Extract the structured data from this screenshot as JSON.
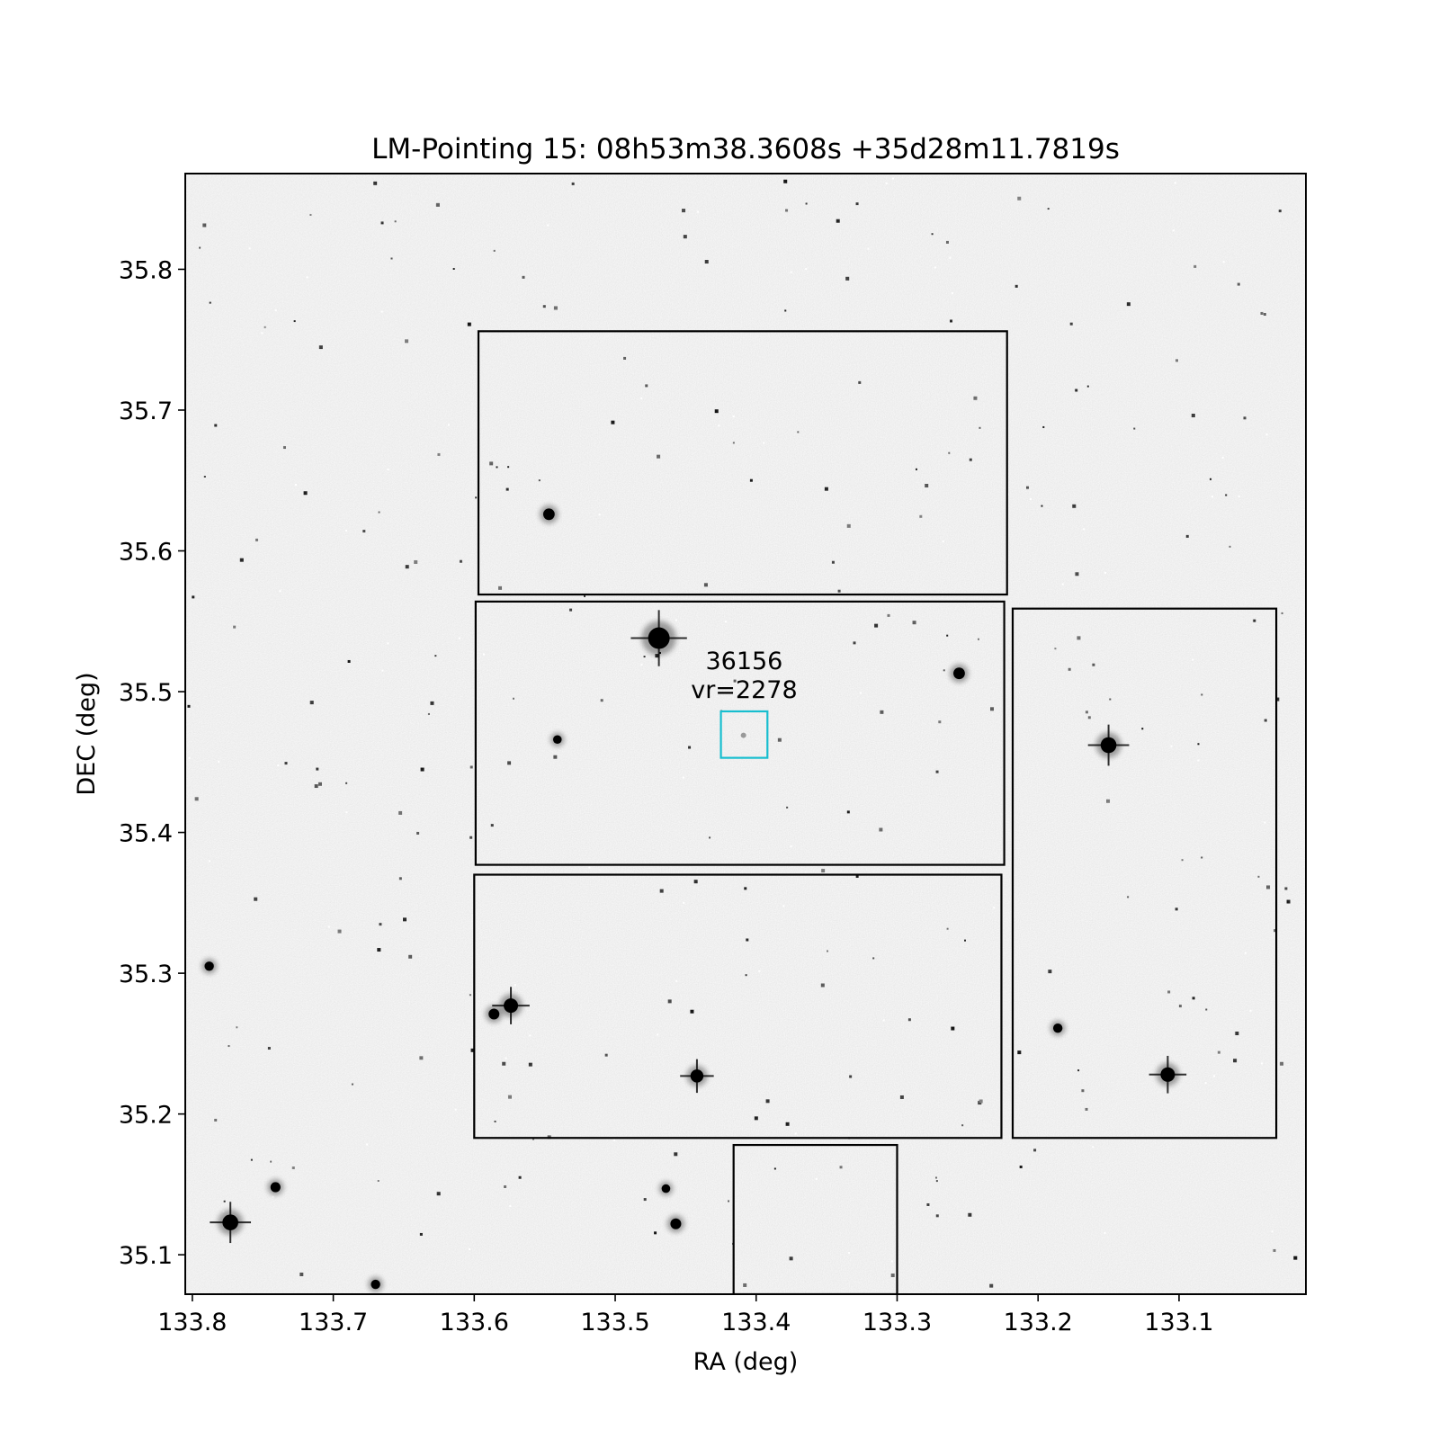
{
  "chart_data": {
    "type": "scatter",
    "title": "LM-Pointing 15: 08h53m38.3608s +35d28m11.7819s",
    "xlabel": "RA (deg)",
    "ylabel": "DEC (deg)",
    "xlim": [
      133.805,
      133.01
    ],
    "ylim": [
      35.072,
      35.868
    ],
    "x_ticks": [
      {
        "value": 133.8,
        "label": "133.8"
      },
      {
        "value": 133.7,
        "label": "133.7"
      },
      {
        "value": 133.6,
        "label": "133.6"
      },
      {
        "value": 133.5,
        "label": "133.5"
      },
      {
        "value": 133.4,
        "label": "133.4"
      },
      {
        "value": 133.3,
        "label": "133.3"
      },
      {
        "value": 133.2,
        "label": "133.2"
      },
      {
        "value": 133.1,
        "label": "133.1"
      }
    ],
    "y_ticks": [
      {
        "value": 35.1,
        "label": "35.1"
      },
      {
        "value": 35.2,
        "label": "35.2"
      },
      {
        "value": 35.3,
        "label": "35.3"
      },
      {
        "value": 35.4,
        "label": "35.4"
      },
      {
        "value": 35.5,
        "label": "35.5"
      },
      {
        "value": 35.6,
        "label": "35.6"
      },
      {
        "value": 35.7,
        "label": "35.7"
      },
      {
        "value": 35.8,
        "label": "35.8"
      }
    ],
    "grid": false,
    "background_image": "grayscale sky survey field",
    "footprints": [
      {
        "ra_min": 133.222,
        "ra_max": 133.597,
        "dec_min": 35.569,
        "dec_max": 35.756
      },
      {
        "ra_min": 133.224,
        "ra_max": 133.599,
        "dec_min": 35.377,
        "dec_max": 35.564
      },
      {
        "ra_min": 133.226,
        "ra_max": 133.6,
        "dec_min": 35.183,
        "dec_max": 35.37
      },
      {
        "ra_min": 133.031,
        "ra_max": 133.218,
        "dec_min": 35.183,
        "dec_max": 35.559
      },
      {
        "ra_min": 133.3,
        "ra_max": 133.416,
        "dec_min": 35.072,
        "dec_max": 35.178
      }
    ],
    "target": {
      "id": "36156",
      "label_line1": "36156",
      "label_line2": "vr=2278",
      "ra": 133.409,
      "dec": 35.469,
      "box_ra_min": 133.392,
      "box_ra_max": 133.425,
      "box_dec_min": 35.453,
      "box_dec_max": 35.486,
      "color": "#17becf"
    },
    "bright_stars": [
      {
        "ra": 133.469,
        "dec": 35.538,
        "mag": 3.0
      },
      {
        "ra": 133.773,
        "dec": 35.123,
        "mag": 2.2
      },
      {
        "ra": 133.15,
        "dec": 35.462,
        "mag": 2.2
      },
      {
        "ra": 133.108,
        "dec": 35.228,
        "mag": 2.0
      },
      {
        "ra": 133.574,
        "dec": 35.277,
        "mag": 2.0
      },
      {
        "ra": 133.442,
        "dec": 35.227,
        "mag": 1.8
      },
      {
        "ra": 133.547,
        "dec": 35.626,
        "mag": 1.6
      },
      {
        "ra": 133.256,
        "dec": 35.513,
        "mag": 1.6
      },
      {
        "ra": 133.457,
        "dec": 35.122,
        "mag": 1.5
      },
      {
        "ra": 133.586,
        "dec": 35.271,
        "mag": 1.5
      },
      {
        "ra": 133.741,
        "dec": 35.148,
        "mag": 1.4
      },
      {
        "ra": 133.788,
        "dec": 35.305,
        "mag": 1.3
      },
      {
        "ra": 133.67,
        "dec": 35.079,
        "mag": 1.3
      },
      {
        "ra": 133.186,
        "dec": 35.261,
        "mag": 1.3
      },
      {
        "ra": 133.541,
        "dec": 35.466,
        "mag": 1.2
      },
      {
        "ra": 133.464,
        "dec": 35.147,
        "mag": 1.2
      }
    ]
  }
}
